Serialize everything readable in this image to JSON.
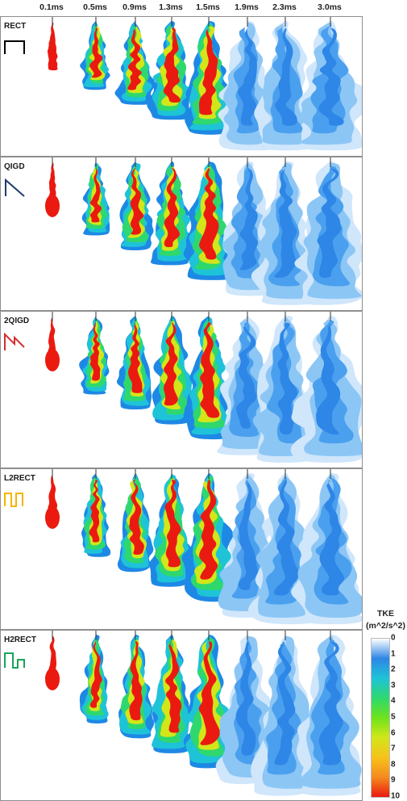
{
  "time_labels": [
    "0.1ms",
    "0.5ms",
    "0.9ms",
    "1.3ms",
    "1.5ms",
    "1.9ms",
    "2.3ms",
    "3.0ms"
  ],
  "rows": [
    {
      "name": "RECT",
      "icon": "rect-pulse-icon",
      "icon_color": "#000000"
    },
    {
      "name": "QIGD",
      "icon": "ramp-down-icon",
      "icon_color": "#1f3a6e"
    },
    {
      "name": "2QIGD",
      "icon": "double-ramp-icon",
      "icon_color": "#d32f2f"
    },
    {
      "name": "L2RECT",
      "icon": "double-pulse-low-icon",
      "icon_color": "#f5b400"
    },
    {
      "name": "H2RECT",
      "icon": "double-pulse-high-icon",
      "icon_color": "#19a55a"
    }
  ],
  "legend": {
    "title_line1": "TKE",
    "title_line2": "(m^2/s^2)",
    "ticks": [
      "0",
      "1",
      "2",
      "3",
      "4",
      "5",
      "6",
      "7",
      "8",
      "9",
      "10"
    ],
    "colors": [
      "#ffffff",
      "#2e86e6",
      "#1ec3d8",
      "#2ed86e",
      "#6ee31c",
      "#d2e61a",
      "#f6c21b",
      "#f58a1e",
      "#ea1a10"
    ]
  }
}
